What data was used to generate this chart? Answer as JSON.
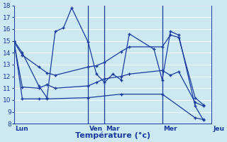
{
  "title": "Température (°c)",
  "background_color": "#cce8f0",
  "grid_color": "#ffffff",
  "line_color": "#1a3a9e",
  "ylim": [
    8,
    18
  ],
  "yticks": [
    8,
    9,
    10,
    11,
    12,
    13,
    14,
    15,
    16,
    17,
    18
  ],
  "day_labels": [
    "Lun",
    "Ven",
    "Mar",
    "Mer",
    "Jeu"
  ],
  "day_x": [
    0,
    9,
    11,
    18,
    24
  ],
  "xlim": [
    0,
    24
  ],
  "line1_x": [
    0,
    1,
    3,
    4,
    5,
    6,
    7,
    9,
    10,
    11,
    12,
    13,
    14,
    17,
    18,
    19,
    20,
    22,
    23
  ],
  "line1_y": [
    15.0,
    14.0,
    11.2,
    10.2,
    15.8,
    16.1,
    17.8,
    14.9,
    12.2,
    11.5,
    12.2,
    11.7,
    15.6,
    14.3,
    11.7,
    15.8,
    15.5,
    9.5,
    8.3
  ],
  "line2_x": [
    0,
    1,
    3,
    4,
    5,
    9,
    10,
    11,
    13,
    14,
    18,
    19,
    20,
    22,
    23
  ],
  "line2_y": [
    14.9,
    13.8,
    12.8,
    12.3,
    12.1,
    12.8,
    12.9,
    13.2,
    14.1,
    14.5,
    14.5,
    15.5,
    15.3,
    10.2,
    9.6
  ],
  "line3_x": [
    0,
    1,
    3,
    4,
    5,
    9,
    10,
    11,
    13,
    14,
    18,
    19,
    20,
    22,
    23
  ],
  "line3_y": [
    14.8,
    11.1,
    11.0,
    11.3,
    11.0,
    11.2,
    11.5,
    11.8,
    12.0,
    12.2,
    12.5,
    12.1,
    12.4,
    9.8,
    9.5
  ],
  "line4_x": [
    0,
    1,
    3,
    4,
    9,
    13,
    18,
    22,
    23
  ],
  "line4_y": [
    15.0,
    10.1,
    10.1,
    10.1,
    10.2,
    10.5,
    10.5,
    8.5,
    8.35
  ],
  "ytick_fontsize": 6.5,
  "xlabel_fontsize": 8,
  "day_label_fontsize": 6.5
}
